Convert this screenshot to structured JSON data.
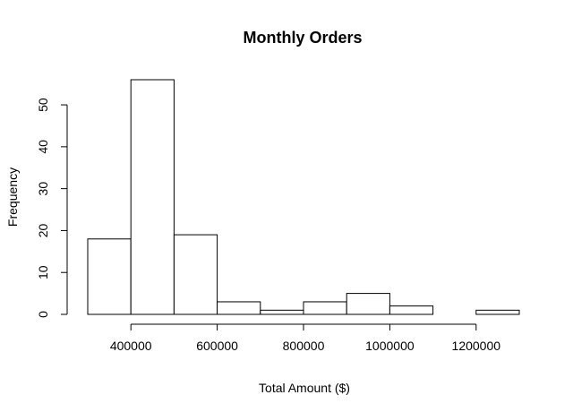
{
  "chart_data": {
    "type": "bar",
    "subtype": "histogram",
    "title": "Monthly Orders",
    "xlabel": "Total Amount ($)",
    "ylabel": "Frequency",
    "bins": [
      {
        "start": 300000,
        "end": 400000,
        "count": 18
      },
      {
        "start": 400000,
        "end": 500000,
        "count": 56
      },
      {
        "start": 500000,
        "end": 600000,
        "count": 19
      },
      {
        "start": 600000,
        "end": 700000,
        "count": 3
      },
      {
        "start": 700000,
        "end": 800000,
        "count": 1
      },
      {
        "start": 800000,
        "end": 900000,
        "count": 3
      },
      {
        "start": 900000,
        "end": 1000000,
        "count": 5
      },
      {
        "start": 1000000,
        "end": 1100000,
        "count": 2
      },
      {
        "start": 1100000,
        "end": 1200000,
        "count": 0
      },
      {
        "start": 1200000,
        "end": 1300000,
        "count": 1
      }
    ],
    "xticks": [
      400000,
      600000,
      800000,
      1000000,
      1200000
    ],
    "yticks": [
      0,
      10,
      20,
      30,
      40,
      50
    ],
    "xlim": [
      300000,
      1300000
    ],
    "ylim": [
      0,
      56
    ],
    "grid": false,
    "legend": "none",
    "colors": {
      "bar_fill": "#ffffff",
      "bar_stroke": "#000000"
    }
  }
}
